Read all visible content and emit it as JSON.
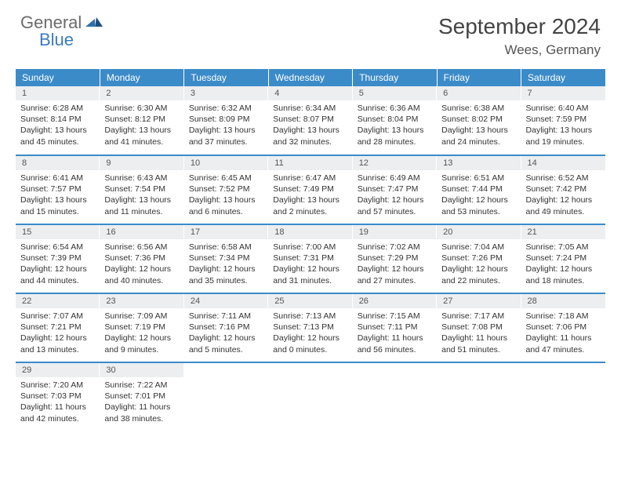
{
  "logo": {
    "general": "General",
    "blue": "Blue"
  },
  "title": "September 2024",
  "location": "Wees, Germany",
  "colors": {
    "header_bg": "#3b8bc9",
    "header_text": "#ffffff",
    "daynum_bg": "#eceef0",
    "row_divider": "#3b8bc9",
    "logo_gray": "#6b6b6b",
    "logo_blue": "#3b7bbf",
    "text": "#333333",
    "title_color": "#444444"
  },
  "weekdays": [
    "Sunday",
    "Monday",
    "Tuesday",
    "Wednesday",
    "Thursday",
    "Friday",
    "Saturday"
  ],
  "days": [
    {
      "n": "1",
      "sr": "6:28 AM",
      "ss": "8:14 PM",
      "dl": "13 hours and 45 minutes."
    },
    {
      "n": "2",
      "sr": "6:30 AM",
      "ss": "8:12 PM",
      "dl": "13 hours and 41 minutes."
    },
    {
      "n": "3",
      "sr": "6:32 AM",
      "ss": "8:09 PM",
      "dl": "13 hours and 37 minutes."
    },
    {
      "n": "4",
      "sr": "6:34 AM",
      "ss": "8:07 PM",
      "dl": "13 hours and 32 minutes."
    },
    {
      "n": "5",
      "sr": "6:36 AM",
      "ss": "8:04 PM",
      "dl": "13 hours and 28 minutes."
    },
    {
      "n": "6",
      "sr": "6:38 AM",
      "ss": "8:02 PM",
      "dl": "13 hours and 24 minutes."
    },
    {
      "n": "7",
      "sr": "6:40 AM",
      "ss": "7:59 PM",
      "dl": "13 hours and 19 minutes."
    },
    {
      "n": "8",
      "sr": "6:41 AM",
      "ss": "7:57 PM",
      "dl": "13 hours and 15 minutes."
    },
    {
      "n": "9",
      "sr": "6:43 AM",
      "ss": "7:54 PM",
      "dl": "13 hours and 11 minutes."
    },
    {
      "n": "10",
      "sr": "6:45 AM",
      "ss": "7:52 PM",
      "dl": "13 hours and 6 minutes."
    },
    {
      "n": "11",
      "sr": "6:47 AM",
      "ss": "7:49 PM",
      "dl": "13 hours and 2 minutes."
    },
    {
      "n": "12",
      "sr": "6:49 AM",
      "ss": "7:47 PM",
      "dl": "12 hours and 57 minutes."
    },
    {
      "n": "13",
      "sr": "6:51 AM",
      "ss": "7:44 PM",
      "dl": "12 hours and 53 minutes."
    },
    {
      "n": "14",
      "sr": "6:52 AM",
      "ss": "7:42 PM",
      "dl": "12 hours and 49 minutes."
    },
    {
      "n": "15",
      "sr": "6:54 AM",
      "ss": "7:39 PM",
      "dl": "12 hours and 44 minutes."
    },
    {
      "n": "16",
      "sr": "6:56 AM",
      "ss": "7:36 PM",
      "dl": "12 hours and 40 minutes."
    },
    {
      "n": "17",
      "sr": "6:58 AM",
      "ss": "7:34 PM",
      "dl": "12 hours and 35 minutes."
    },
    {
      "n": "18",
      "sr": "7:00 AM",
      "ss": "7:31 PM",
      "dl": "12 hours and 31 minutes."
    },
    {
      "n": "19",
      "sr": "7:02 AM",
      "ss": "7:29 PM",
      "dl": "12 hours and 27 minutes."
    },
    {
      "n": "20",
      "sr": "7:04 AM",
      "ss": "7:26 PM",
      "dl": "12 hours and 22 minutes."
    },
    {
      "n": "21",
      "sr": "7:05 AM",
      "ss": "7:24 PM",
      "dl": "12 hours and 18 minutes."
    },
    {
      "n": "22",
      "sr": "7:07 AM",
      "ss": "7:21 PM",
      "dl": "12 hours and 13 minutes."
    },
    {
      "n": "23",
      "sr": "7:09 AM",
      "ss": "7:19 PM",
      "dl": "12 hours and 9 minutes."
    },
    {
      "n": "24",
      "sr": "7:11 AM",
      "ss": "7:16 PM",
      "dl": "12 hours and 5 minutes."
    },
    {
      "n": "25",
      "sr": "7:13 AM",
      "ss": "7:13 PM",
      "dl": "12 hours and 0 minutes."
    },
    {
      "n": "26",
      "sr": "7:15 AM",
      "ss": "7:11 PM",
      "dl": "11 hours and 56 minutes."
    },
    {
      "n": "27",
      "sr": "7:17 AM",
      "ss": "7:08 PM",
      "dl": "11 hours and 51 minutes."
    },
    {
      "n": "28",
      "sr": "7:18 AM",
      "ss": "7:06 PM",
      "dl": "11 hours and 47 minutes."
    },
    {
      "n": "29",
      "sr": "7:20 AM",
      "ss": "7:03 PM",
      "dl": "11 hours and 42 minutes."
    },
    {
      "n": "30",
      "sr": "7:22 AM",
      "ss": "7:01 PM",
      "dl": "11 hours and 38 minutes."
    }
  ],
  "labels": {
    "sunrise": "Sunrise:",
    "sunset": "Sunset:",
    "daylight": "Daylight:"
  },
  "layout": {
    "first_day_column": 0,
    "total_cells": 35
  }
}
